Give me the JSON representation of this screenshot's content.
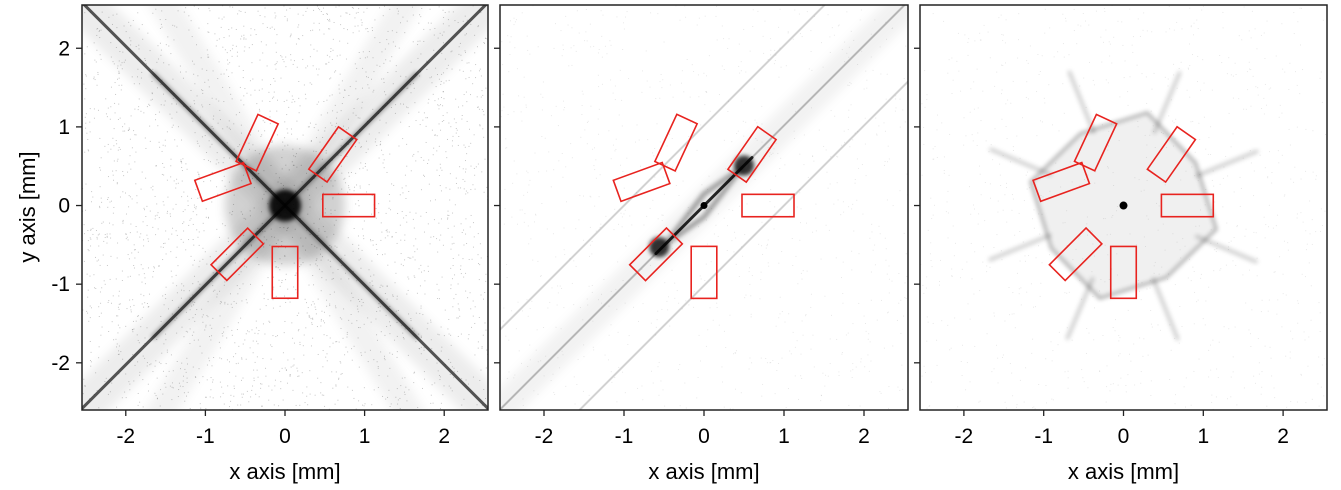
{
  "chart_data": [
    {
      "type": "heatmap",
      "panel": "left",
      "xlabel": "x axis [mm]",
      "ylabel": "y axis [mm]",
      "xlim": [
        -2.55,
        2.55
      ],
      "ylim": [
        -2.6,
        2.55
      ],
      "xticks": [
        -2,
        -1,
        0,
        1,
        2
      ],
      "yticks": [
        -2,
        -1,
        0,
        1,
        2
      ],
      "density_description": "X-shaped streak pattern with dense center",
      "regions": [
        {
          "cx": -0.35,
          "cy": 0.8,
          "w": 0.28,
          "h": 0.65,
          "angle": 25
        },
        {
          "cx": 0.6,
          "cy": 0.65,
          "w": 0.28,
          "h": 0.65,
          "angle": -145
        },
        {
          "cx": -0.78,
          "cy": 0.3,
          "w": 0.65,
          "h": 0.28,
          "angle": -20
        },
        {
          "cx": 0.8,
          "cy": 0.0,
          "w": 0.65,
          "h": 0.28,
          "angle": 0
        },
        {
          "cx": -0.6,
          "cy": -0.62,
          "w": 0.28,
          "h": 0.65,
          "angle": 45
        },
        {
          "cx": 0.0,
          "cy": -0.85,
          "w": 0.32,
          "h": 0.65,
          "angle": 0
        }
      ]
    },
    {
      "type": "heatmap",
      "panel": "middle",
      "xlabel": "x axis [mm]",
      "ylabel": "",
      "xlim": [
        -2.55,
        2.55
      ],
      "ylim": [
        -2.6,
        2.55
      ],
      "xticks": [
        -2,
        -1,
        0,
        1,
        2
      ],
      "yticks": [
        -2,
        -1,
        0,
        1,
        2
      ],
      "density_description": "Diagonal streaks with diamond at center",
      "regions": [
        {
          "cx": -0.35,
          "cy": 0.8,
          "w": 0.28,
          "h": 0.65,
          "angle": 25
        },
        {
          "cx": 0.6,
          "cy": 0.65,
          "w": 0.28,
          "h": 0.65,
          "angle": -145
        },
        {
          "cx": -0.78,
          "cy": 0.3,
          "w": 0.65,
          "h": 0.28,
          "angle": -20
        },
        {
          "cx": 0.8,
          "cy": 0.0,
          "w": 0.65,
          "h": 0.28,
          "angle": 0
        },
        {
          "cx": -0.6,
          "cy": -0.62,
          "w": 0.28,
          "h": 0.65,
          "angle": 45
        },
        {
          "cx": 0.0,
          "cy": -0.85,
          "w": 0.32,
          "h": 0.65,
          "angle": 0
        }
      ]
    },
    {
      "type": "heatmap",
      "panel": "right",
      "xlabel": "x axis [mm]",
      "ylabel": "",
      "xlim": [
        -2.55,
        2.55
      ],
      "ylim": [
        -2.6,
        2.55
      ],
      "xticks": [
        -2,
        -1,
        0,
        1,
        2
      ],
      "yticks": [
        -2,
        -1,
        0,
        1,
        2
      ],
      "density_description": "Web-like octagonal pattern around center",
      "regions": [
        {
          "cx": -0.35,
          "cy": 0.8,
          "w": 0.28,
          "h": 0.65,
          "angle": 25
        },
        {
          "cx": 0.6,
          "cy": 0.65,
          "w": 0.28,
          "h": 0.65,
          "angle": -145
        },
        {
          "cx": -0.78,
          "cy": 0.3,
          "w": 0.65,
          "h": 0.28,
          "angle": -20
        },
        {
          "cx": 0.8,
          "cy": 0.0,
          "w": 0.65,
          "h": 0.28,
          "angle": 0
        },
        {
          "cx": -0.6,
          "cy": -0.62,
          "w": 0.28,
          "h": 0.65,
          "angle": 45
        },
        {
          "cx": 0.0,
          "cy": -0.85,
          "w": 0.32,
          "h": 0.65,
          "angle": 0
        }
      ]
    }
  ],
  "colors": {
    "region_outline": "#e8231f",
    "density": "#000000",
    "frame": "#222222"
  }
}
